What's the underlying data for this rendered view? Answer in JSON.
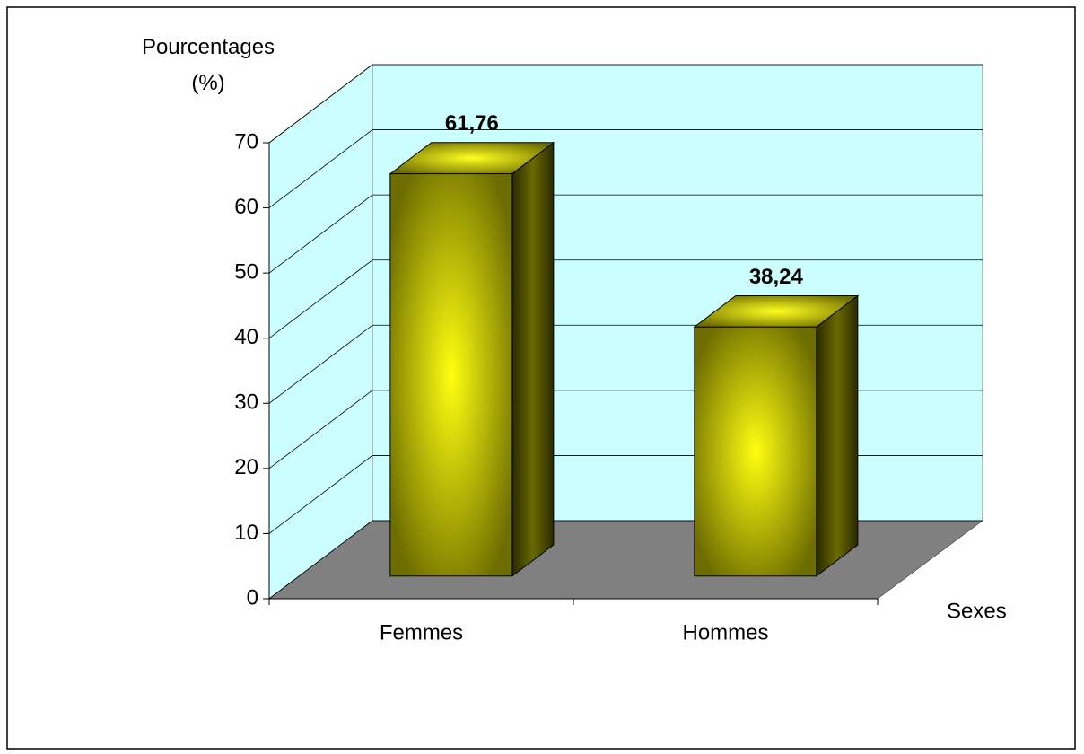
{
  "chart_data": {
    "type": "bar3d",
    "ylabel": "Pourcentages (%)",
    "xlabel": "Sexes",
    "categories": [
      "Femmes",
      "Hommes"
    ],
    "values": [
      61.76,
      38.24
    ],
    "value_labels": [
      "61,76",
      "38,24"
    ],
    "color": "#ffff00",
    "ylim": [
      0,
      70
    ],
    "yticks": [
      0,
      10,
      20,
      30,
      40,
      50,
      60,
      70
    ],
    "grid": true
  }
}
